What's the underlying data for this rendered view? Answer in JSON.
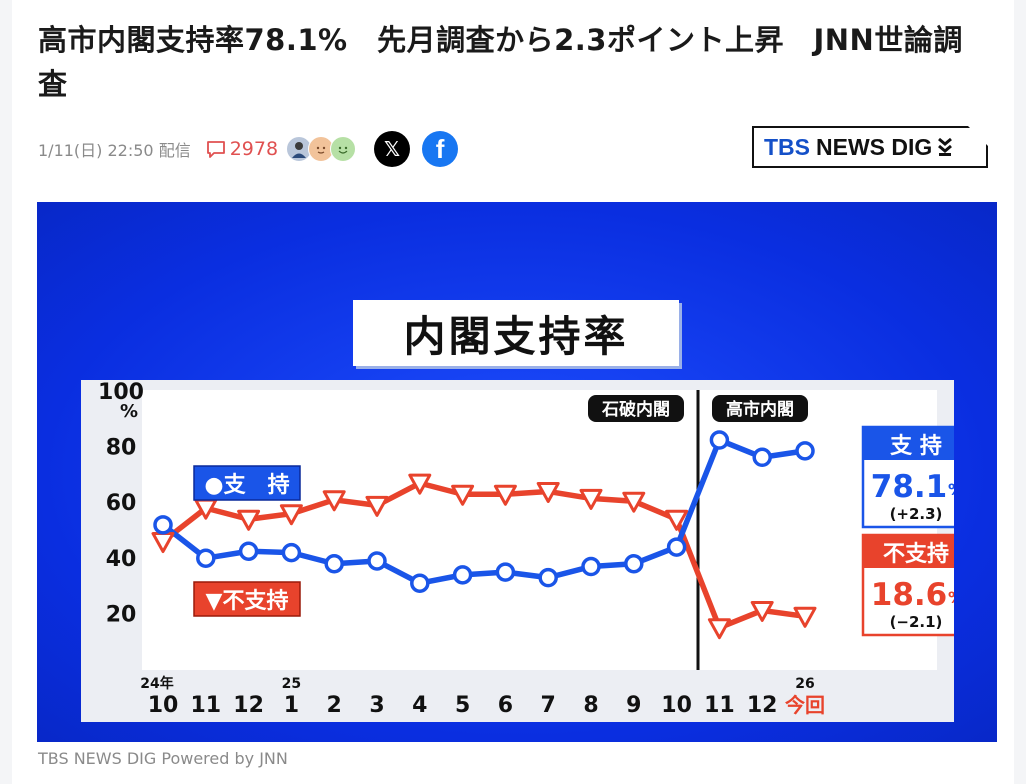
{
  "article": {
    "title": "高市内閣支持率78.1%　先月調査から2.3ポイント上昇　JNN世論調査",
    "date": "1/11(日) 22:50 配信",
    "comment_count": "2978",
    "caption": "TBS NEWS DIG Powered by JNN"
  },
  "publisher": {
    "logo_tbs": "TBS",
    "logo_rest": "NEWS DIG"
  },
  "share": {
    "x_label": "𝕏",
    "facebook_label": "f"
  },
  "icons": {
    "comment": "comment-icon",
    "avatars": [
      "avatar-man-icon",
      "avatar-face-icon",
      "avatar-smile-icon"
    ]
  },
  "colors": {
    "support": "#1a55e8",
    "nonsupport": "#e8432c",
    "background_blue": "#0a2ee0"
  },
  "chart_data": {
    "type": "line",
    "title": "内閣支持率",
    "ylabel": "%",
    "ylim": [
      0,
      100
    ],
    "yticks": [
      "100",
      "80",
      "60",
      "40",
      "20"
    ],
    "year_labels": [
      {
        "index": 0,
        "label": "24年"
      },
      {
        "index": 3,
        "label": "25"
      },
      {
        "index": 15,
        "label": "26"
      }
    ],
    "categories": [
      "10",
      "11",
      "12",
      "1",
      "2",
      "3",
      "4",
      "5",
      "6",
      "7",
      "8",
      "9",
      "10",
      "11",
      "12",
      "今回"
    ],
    "periods": [
      {
        "label": "石破内閣",
        "from": 0,
        "to": 12
      },
      {
        "label": "高市内閣",
        "from": 13,
        "to": 15
      }
    ],
    "series": [
      {
        "name": "●支　持",
        "values": [
          51.5,
          39.5,
          42.0,
          41.5,
          37.5,
          38.5,
          30.5,
          33.5,
          34.5,
          32.5,
          36.5,
          37.5,
          43.5,
          82.0,
          75.8,
          78.1
        ]
      },
      {
        "name": "▼不支持",
        "values": [
          45.5,
          57.5,
          53.5,
          55.5,
          60.5,
          58.5,
          66.5,
          62.5,
          62.5,
          63.5,
          61.0,
          60.0,
          53.5,
          14.5,
          20.7,
          18.6
        ]
      }
    ],
    "callouts": [
      {
        "header": "支 持",
        "value": "78.1",
        "unit": "%",
        "change": "(+2.3)"
      },
      {
        "header": "不支持",
        "value": "18.6",
        "unit": "%",
        "change": "(−2.1)"
      }
    ],
    "grid": false
  }
}
